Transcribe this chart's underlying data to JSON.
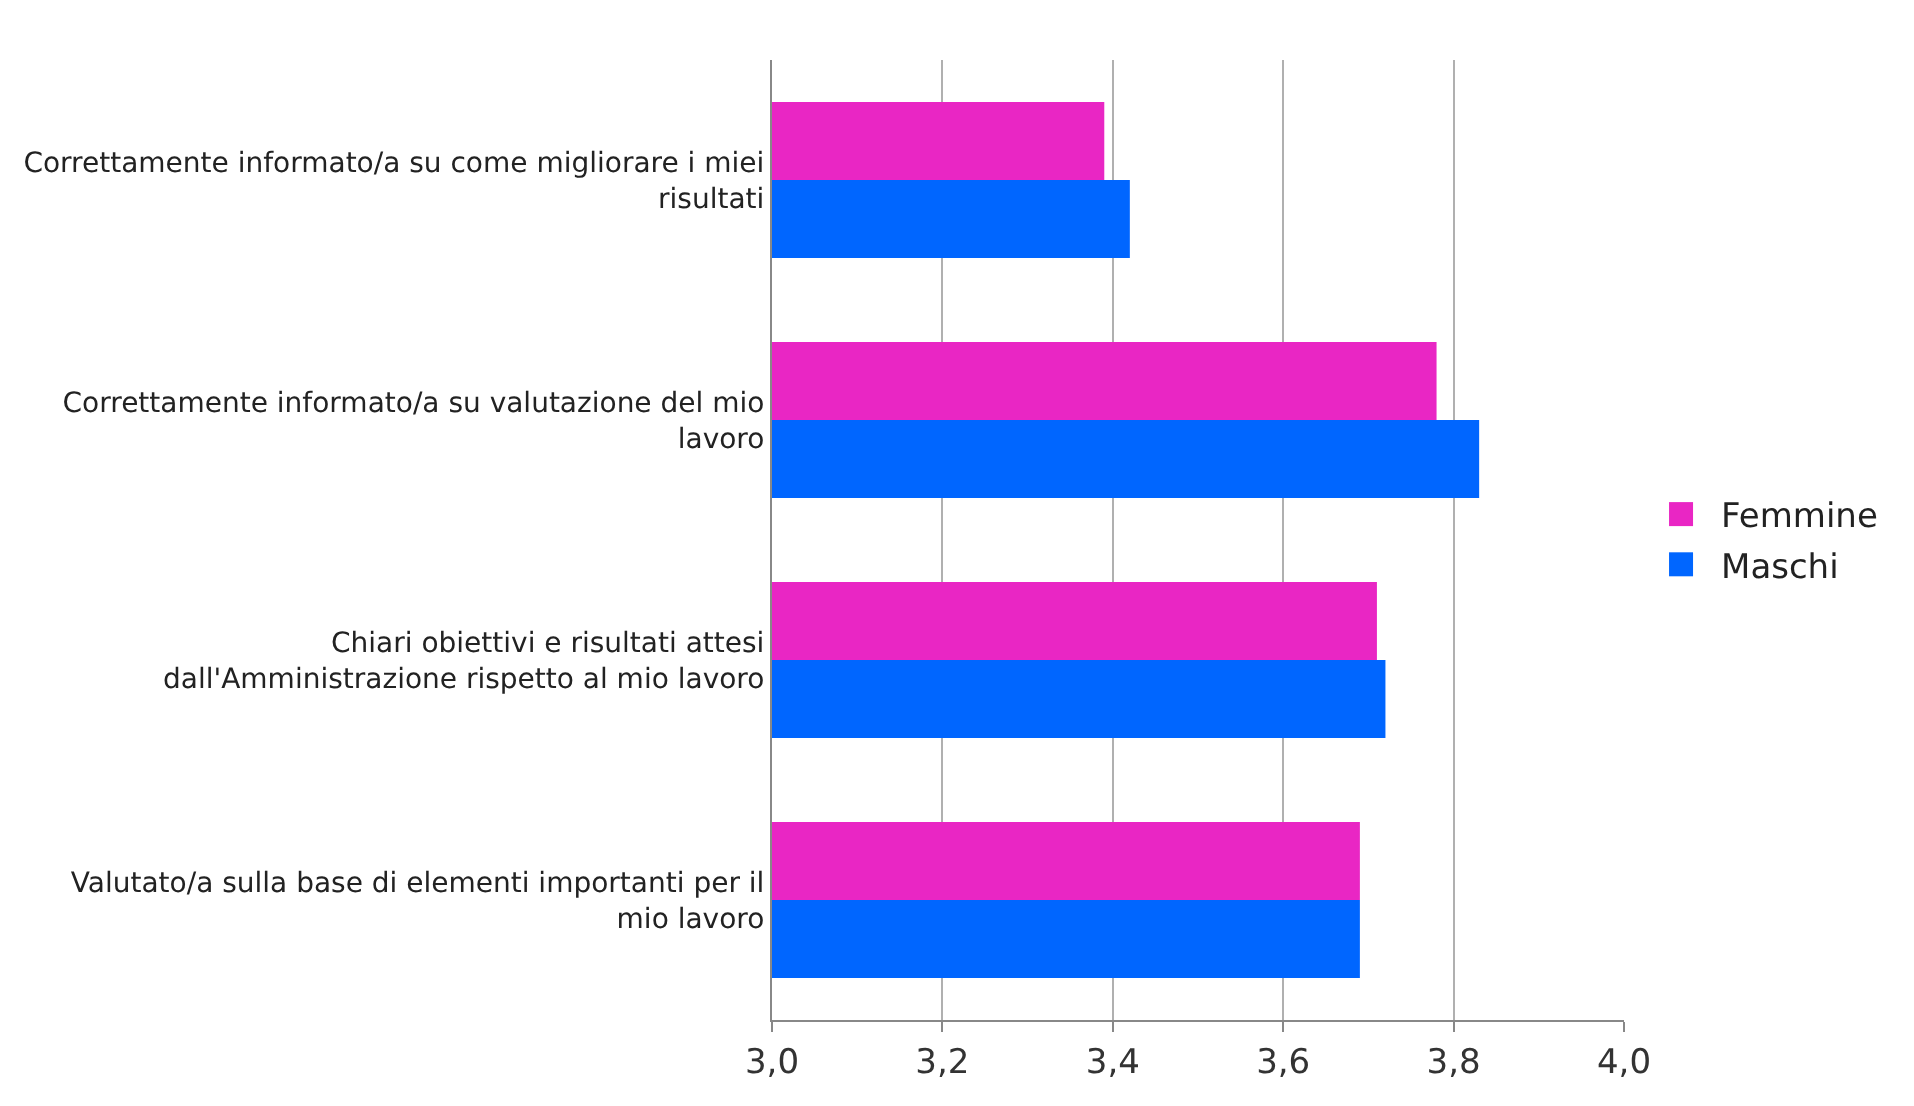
{
  "chart_data": {
    "type": "bar",
    "orientation": "horizontal",
    "categories": [
      "Correttamente informato/a su come migliorare i miei risultati",
      "Correttamente informato/a su valutazione del mio lavoro",
      "Chiari obiettivi e risultati attesi dall'Amministrazione rispetto al mio lavoro",
      "Valutato/a sulla base di elementi importanti per il mio lavoro"
    ],
    "series": [
      {
        "name": "Femmine",
        "color": "#e926c4",
        "values": [
          3.39,
          3.78,
          3.71,
          3.69
        ]
      },
      {
        "name": "Maschi",
        "color": "#0066ff",
        "values": [
          3.42,
          3.83,
          3.72,
          3.69
        ]
      }
    ],
    "xlim": [
      3.0,
      4.0
    ],
    "xticks": [
      {
        "value": 3.0,
        "label": "3,0"
      },
      {
        "value": 3.2,
        "label": "3,2"
      },
      {
        "value": 3.4,
        "label": "3,4"
      },
      {
        "value": 3.6,
        "label": "3,6"
      },
      {
        "value": 3.8,
        "label": "3,8"
      },
      {
        "value": 4.0,
        "label": "4,0"
      }
    ],
    "grid": "x",
    "legend": "right"
  }
}
